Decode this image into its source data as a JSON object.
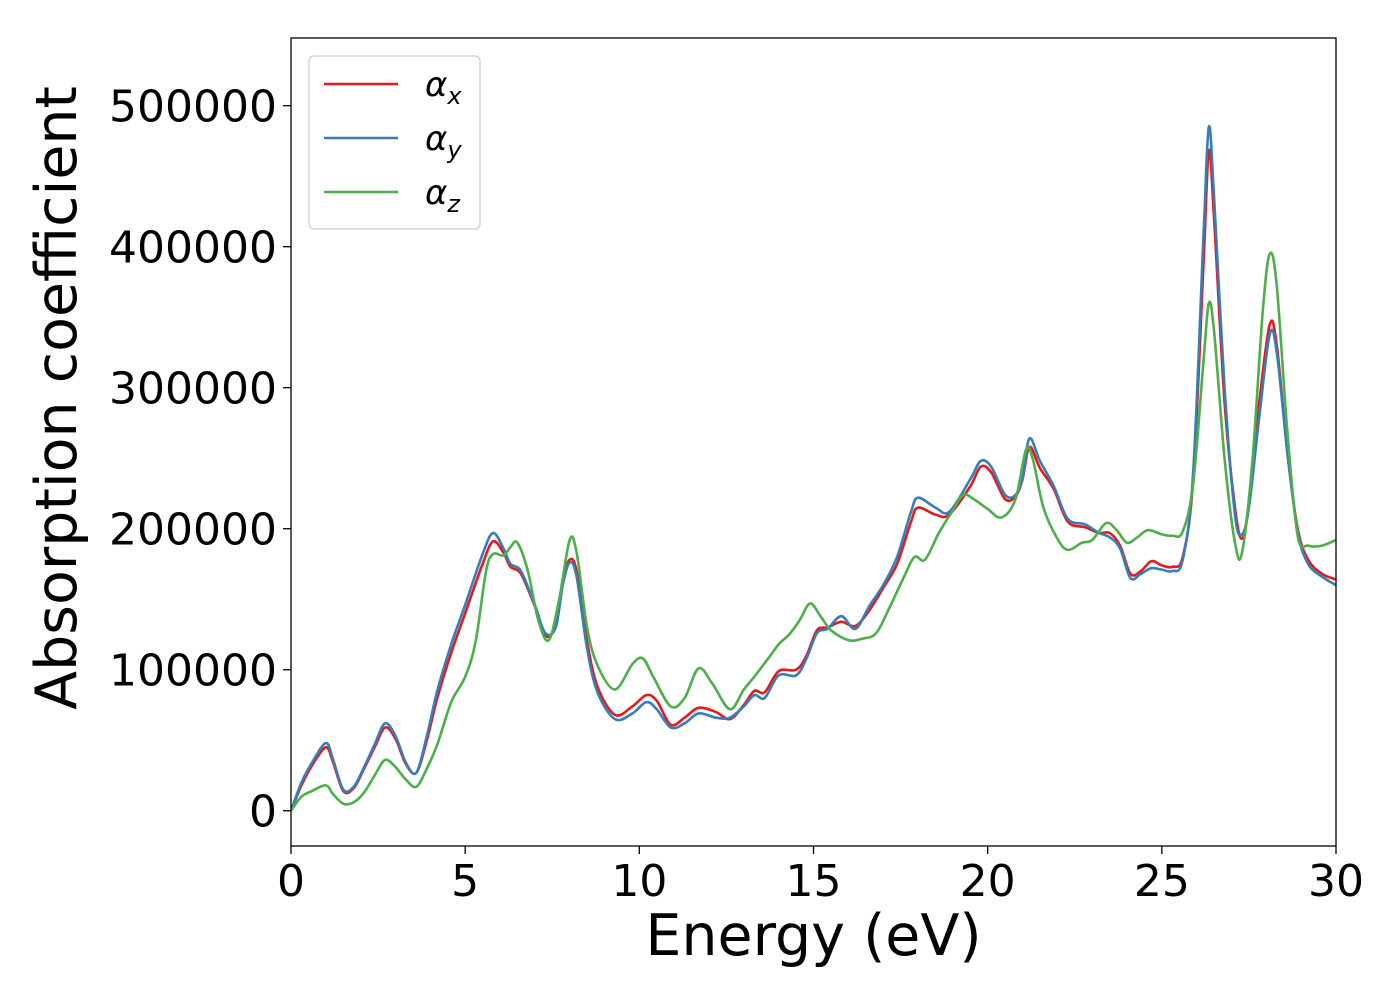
{
  "chart_data": {
    "type": "line",
    "xlabel": "Energy (eV)",
    "ylabel": "Absorption coefficient",
    "xlim": [
      0,
      30
    ],
    "ylim": [
      -25000,
      548000
    ],
    "xticks": [
      0,
      5,
      10,
      15,
      20,
      25,
      30
    ],
    "xtick_labels": [
      "0",
      "5",
      "10",
      "15",
      "20",
      "25",
      "30"
    ],
    "yticks": [
      0,
      100000,
      200000,
      300000,
      400000,
      500000
    ],
    "ytick_labels": [
      "0",
      "100000",
      "200000",
      "300000",
      "400000",
      "500000"
    ],
    "grid": false,
    "legend_position": "top-left",
    "series": [
      {
        "name": "α_x",
        "label_base": "α",
        "label_sub": "x",
        "color": "#e41a1c",
        "points": [
          [
            0,
            0
          ],
          [
            0.3,
            18000
          ],
          [
            0.6,
            32000
          ],
          [
            1.0,
            45000
          ],
          [
            1.2,
            35000
          ],
          [
            1.5,
            14000
          ],
          [
            1.8,
            16000
          ],
          [
            2.1,
            30000
          ],
          [
            2.4,
            45000
          ],
          [
            2.7,
            59000
          ],
          [
            3.0,
            51000
          ],
          [
            3.3,
            33000
          ],
          [
            3.6,
            27000
          ],
          [
            3.9,
            50000
          ],
          [
            4.2,
            80000
          ],
          [
            4.6,
            112000
          ],
          [
            5.0,
            140000
          ],
          [
            5.5,
            175000
          ],
          [
            5.8,
            191000
          ],
          [
            6.1,
            183000
          ],
          [
            6.3,
            173000
          ],
          [
            6.6,
            168000
          ],
          [
            7.0,
            145000
          ],
          [
            7.3,
            124000
          ],
          [
            7.6,
            132000
          ],
          [
            7.8,
            163000
          ],
          [
            8.0,
            178000
          ],
          [
            8.2,
            170000
          ],
          [
            8.5,
            120000
          ],
          [
            8.8,
            88000
          ],
          [
            9.3,
            68000
          ],
          [
            9.8,
            74000
          ],
          [
            10.2,
            82000
          ],
          [
            10.5,
            78000
          ],
          [
            10.9,
            61000
          ],
          [
            11.3,
            66000
          ],
          [
            11.7,
            73000
          ],
          [
            12.2,
            70000
          ],
          [
            12.6,
            65000
          ],
          [
            13.0,
            75000
          ],
          [
            13.3,
            85000
          ],
          [
            13.6,
            84000
          ],
          [
            14.0,
            99000
          ],
          [
            14.5,
            100000
          ],
          [
            14.8,
            110000
          ],
          [
            15.1,
            128000
          ],
          [
            15.4,
            130000
          ],
          [
            15.8,
            134000
          ],
          [
            16.2,
            131000
          ],
          [
            16.6,
            142000
          ],
          [
            17.0,
            158000
          ],
          [
            17.4,
            175000
          ],
          [
            17.8,
            205000
          ],
          [
            18.0,
            215000
          ],
          [
            18.5,
            210000
          ],
          [
            18.9,
            210000
          ],
          [
            19.5,
            230000
          ],
          [
            19.8,
            244000
          ],
          [
            20.1,
            240000
          ],
          [
            20.5,
            221000
          ],
          [
            20.8,
            223000
          ],
          [
            21.0,
            235000
          ],
          [
            21.2,
            258000
          ],
          [
            21.5,
            243000
          ],
          [
            21.9,
            228000
          ],
          [
            22.3,
            205000
          ],
          [
            22.8,
            201000
          ],
          [
            23.2,
            197000
          ],
          [
            23.5,
            197000
          ],
          [
            23.8,
            188000
          ],
          [
            24.1,
            168000
          ],
          [
            24.4,
            170000
          ],
          [
            24.7,
            177000
          ],
          [
            25.0,
            174000
          ],
          [
            25.3,
            173000
          ],
          [
            25.6,
            180000
          ],
          [
            25.9,
            235000
          ],
          [
            26.2,
            390000
          ],
          [
            26.35,
            468000
          ],
          [
            26.5,
            420000
          ],
          [
            26.8,
            290000
          ],
          [
            27.1,
            215000
          ],
          [
            27.3,
            193000
          ],
          [
            27.5,
            218000
          ],
          [
            27.8,
            290000
          ],
          [
            28.1,
            345000
          ],
          [
            28.3,
            330000
          ],
          [
            28.6,
            255000
          ],
          [
            28.9,
            200000
          ],
          [
            29.2,
            178000
          ],
          [
            29.6,
            168000
          ],
          [
            30.0,
            164000
          ]
        ]
      },
      {
        "name": "α_y",
        "label_base": "α",
        "label_sub": "y",
        "color": "#377eb8",
        "points": [
          [
            0,
            0
          ],
          [
            0.3,
            20000
          ],
          [
            0.6,
            34000
          ],
          [
            1.0,
            48000
          ],
          [
            1.2,
            37000
          ],
          [
            1.5,
            15000
          ],
          [
            1.8,
            17000
          ],
          [
            2.1,
            31000
          ],
          [
            2.4,
            47000
          ],
          [
            2.7,
            62000
          ],
          [
            3.0,
            53000
          ],
          [
            3.3,
            34000
          ],
          [
            3.6,
            27000
          ],
          [
            3.9,
            53000
          ],
          [
            4.2,
            85000
          ],
          [
            4.6,
            118000
          ],
          [
            5.0,
            146000
          ],
          [
            5.5,
            182000
          ],
          [
            5.8,
            197000
          ],
          [
            6.1,
            186000
          ],
          [
            6.3,
            175000
          ],
          [
            6.6,
            170000
          ],
          [
            7.0,
            146000
          ],
          [
            7.3,
            126000
          ],
          [
            7.6,
            130000
          ],
          [
            7.8,
            160000
          ],
          [
            8.0,
            176000
          ],
          [
            8.2,
            166000
          ],
          [
            8.5,
            115000
          ],
          [
            8.8,
            84000
          ],
          [
            9.3,
            65000
          ],
          [
            9.8,
            69000
          ],
          [
            10.2,
            77000
          ],
          [
            10.5,
            72000
          ],
          [
            10.9,
            59000
          ],
          [
            11.3,
            62000
          ],
          [
            11.7,
            69000
          ],
          [
            12.2,
            66000
          ],
          [
            12.6,
            66000
          ],
          [
            13.0,
            74000
          ],
          [
            13.3,
            82000
          ],
          [
            13.6,
            80000
          ],
          [
            14.0,
            96000
          ],
          [
            14.5,
            96000
          ],
          [
            14.8,
            108000
          ],
          [
            15.1,
            126000
          ],
          [
            15.4,
            129000
          ],
          [
            15.8,
            138000
          ],
          [
            16.2,
            129000
          ],
          [
            16.6,
            145000
          ],
          [
            17.0,
            160000
          ],
          [
            17.4,
            180000
          ],
          [
            17.8,
            212000
          ],
          [
            18.0,
            222000
          ],
          [
            18.5,
            215000
          ],
          [
            18.9,
            212000
          ],
          [
            19.5,
            235000
          ],
          [
            19.8,
            248000
          ],
          [
            20.1,
            244000
          ],
          [
            20.5,
            224000
          ],
          [
            20.8,
            224000
          ],
          [
            21.0,
            236000
          ],
          [
            21.2,
            264000
          ],
          [
            21.5,
            248000
          ],
          [
            21.9,
            230000
          ],
          [
            22.3,
            207000
          ],
          [
            22.8,
            203000
          ],
          [
            23.2,
            197000
          ],
          [
            23.5,
            194000
          ],
          [
            23.8,
            186000
          ],
          [
            24.1,
            165000
          ],
          [
            24.4,
            168000
          ],
          [
            24.7,
            172000
          ],
          [
            25.0,
            171000
          ],
          [
            25.3,
            170000
          ],
          [
            25.6,
            178000
          ],
          [
            25.9,
            240000
          ],
          [
            26.2,
            410000
          ],
          [
            26.35,
            485000
          ],
          [
            26.5,
            435000
          ],
          [
            26.8,
            300000
          ],
          [
            27.1,
            210000
          ],
          [
            27.3,
            196000
          ],
          [
            27.5,
            215000
          ],
          [
            27.8,
            280000
          ],
          [
            28.1,
            338000
          ],
          [
            28.3,
            325000
          ],
          [
            28.6,
            255000
          ],
          [
            28.9,
            198000
          ],
          [
            29.2,
            175000
          ],
          [
            29.6,
            166000
          ],
          [
            30.0,
            160000
          ]
        ]
      },
      {
        "name": "α_z",
        "label_base": "α",
        "label_sub": "z",
        "color": "#4daf4a",
        "points": [
          [
            0,
            0
          ],
          [
            0.3,
            10000
          ],
          [
            0.6,
            14000
          ],
          [
            1.0,
            18000
          ],
          [
            1.2,
            12000
          ],
          [
            1.5,
            5000
          ],
          [
            1.8,
            6000
          ],
          [
            2.1,
            13000
          ],
          [
            2.4,
            25000
          ],
          [
            2.7,
            36000
          ],
          [
            3.0,
            31000
          ],
          [
            3.3,
            22000
          ],
          [
            3.6,
            17000
          ],
          [
            3.9,
            30000
          ],
          [
            4.2,
            47000
          ],
          [
            4.6,
            77000
          ],
          [
            5.0,
            95000
          ],
          [
            5.3,
            120000
          ],
          [
            5.6,
            170000
          ],
          [
            5.8,
            182000
          ],
          [
            6.1,
            181000
          ],
          [
            6.3,
            187000
          ],
          [
            6.5,
            190000
          ],
          [
            6.8,
            170000
          ],
          [
            7.1,
            135000
          ],
          [
            7.4,
            121000
          ],
          [
            7.7,
            150000
          ],
          [
            8.0,
            192000
          ],
          [
            8.2,
            183000
          ],
          [
            8.5,
            130000
          ],
          [
            8.8,
            103000
          ],
          [
            9.3,
            86000
          ],
          [
            9.8,
            104000
          ],
          [
            10.1,
            108000
          ],
          [
            10.4,
            95000
          ],
          [
            10.9,
            74000
          ],
          [
            11.3,
            80000
          ],
          [
            11.7,
            101000
          ],
          [
            12.1,
            90000
          ],
          [
            12.6,
            72000
          ],
          [
            13.0,
            86000
          ],
          [
            13.3,
            95000
          ],
          [
            13.7,
            108000
          ],
          [
            14.0,
            118000
          ],
          [
            14.3,
            125000
          ],
          [
            14.6,
            135000
          ],
          [
            14.9,
            147000
          ],
          [
            15.2,
            138000
          ],
          [
            15.5,
            128000
          ],
          [
            16.0,
            121000
          ],
          [
            16.4,
            122000
          ],
          [
            16.8,
            126000
          ],
          [
            17.2,
            145000
          ],
          [
            17.6,
            166000
          ],
          [
            17.9,
            180000
          ],
          [
            18.2,
            178000
          ],
          [
            18.6,
            197000
          ],
          [
            19.0,
            213000
          ],
          [
            19.3,
            224000
          ],
          [
            19.6,
            221000
          ],
          [
            20.0,
            214000
          ],
          [
            20.4,
            208000
          ],
          [
            20.8,
            221000
          ],
          [
            21.1,
            256000
          ],
          [
            21.3,
            249000
          ],
          [
            21.6,
            215000
          ],
          [
            22.0,
            193000
          ],
          [
            22.3,
            185000
          ],
          [
            22.7,
            190000
          ],
          [
            23.0,
            192000
          ],
          [
            23.4,
            204000
          ],
          [
            23.7,
            199000
          ],
          [
            24.0,
            190000
          ],
          [
            24.3,
            194000
          ],
          [
            24.6,
            199000
          ],
          [
            25.0,
            196000
          ],
          [
            25.3,
            195000
          ],
          [
            25.6,
            198000
          ],
          [
            25.9,
            232000
          ],
          [
            26.2,
            320000
          ],
          [
            26.35,
            360000
          ],
          [
            26.5,
            340000
          ],
          [
            26.8,
            250000
          ],
          [
            27.1,
            190000
          ],
          [
            27.3,
            183000
          ],
          [
            27.6,
            248000
          ],
          [
            27.9,
            355000
          ],
          [
            28.1,
            395000
          ],
          [
            28.3,
            372000
          ],
          [
            28.6,
            270000
          ],
          [
            28.9,
            195000
          ],
          [
            29.2,
            188000
          ],
          [
            29.6,
            188000
          ],
          [
            30.0,
            192000
          ]
        ]
      }
    ]
  }
}
